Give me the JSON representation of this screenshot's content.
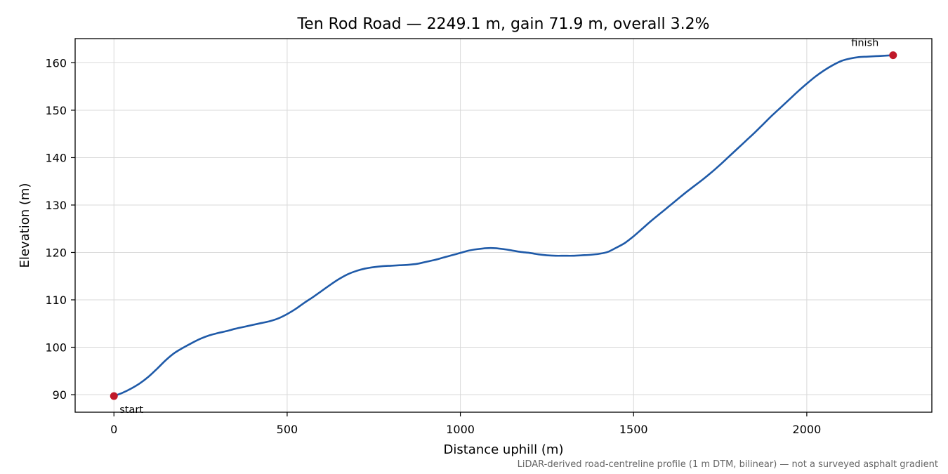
{
  "chart_data": {
    "type": "line",
    "title": "Ten Rod Road — 2249.1 m, gain 71.9 m, overall 3.2%",
    "xlabel": "Distance uphill (m)",
    "ylabel": "Elevation (m)",
    "footnote": "LiDAR-derived road-centreline profile (1 m DTM, bilinear) — not a surveyed asphalt gradient",
    "xlim": [
      -112,
      2361
    ],
    "ylim": [
      86.3,
      165.1
    ],
    "xticks": [
      0,
      500,
      1000,
      1500,
      2000
    ],
    "xtick_labels": [
      "0",
      "500",
      "1000",
      "1500",
      "2000"
    ],
    "yticks": [
      90,
      100,
      110,
      120,
      130,
      140,
      150,
      160
    ],
    "ytick_labels": [
      "90",
      "100",
      "110",
      "120",
      "130",
      "140",
      "150",
      "160"
    ],
    "grid": true,
    "series": [
      {
        "color": "#1f5aa8",
        "x": [
          0,
          25,
          50,
          75,
          100,
          125,
          150,
          175,
          200,
          225,
          250,
          275,
          300,
          325,
          350,
          375,
          400,
          425,
          450,
          475,
          500,
          525,
          550,
          575,
          600,
          625,
          650,
          675,
          700,
          725,
          750,
          775,
          800,
          825,
          850,
          875,
          900,
          925,
          950,
          975,
          1000,
          1025,
          1050,
          1075,
          1100,
          1125,
          1150,
          1175,
          1200,
          1225,
          1250,
          1275,
          1300,
          1325,
          1350,
          1375,
          1400,
          1425,
          1450,
          1475,
          1500,
          1525,
          1550,
          1575,
          1600,
          1625,
          1650,
          1675,
          1700,
          1725,
          1750,
          1775,
          1800,
          1825,
          1850,
          1875,
          1900,
          1925,
          1950,
          1975,
          2000,
          2025,
          2050,
          2075,
          2100,
          2125,
          2150,
          2175,
          2200,
          2225,
          2249.1
        ],
        "y": [
          89.7,
          90.4,
          91.3,
          92.4,
          93.8,
          95.5,
          97.3,
          98.8,
          99.9,
          100.9,
          101.8,
          102.5,
          103.0,
          103.4,
          103.9,
          104.3,
          104.7,
          105.1,
          105.5,
          106.1,
          107.0,
          108.1,
          109.4,
          110.6,
          111.9,
          113.2,
          114.4,
          115.4,
          116.1,
          116.6,
          116.9,
          117.1,
          117.2,
          117.3,
          117.4,
          117.6,
          118.0,
          118.4,
          118.9,
          119.4,
          119.9,
          120.4,
          120.7,
          120.9,
          120.9,
          120.7,
          120.4,
          120.1,
          119.9,
          119.6,
          119.4,
          119.3,
          119.3,
          119.3,
          119.4,
          119.5,
          119.7,
          120.1,
          121.0,
          122.0,
          123.4,
          125.0,
          126.6,
          128.1,
          129.6,
          131.1,
          132.6,
          134.0,
          135.4,
          136.9,
          138.5,
          140.2,
          141.9,
          143.6,
          145.3,
          147.1,
          148.9,
          150.6,
          152.3,
          154.0,
          155.6,
          157.1,
          158.4,
          159.5,
          160.4,
          160.9,
          161.2,
          161.3,
          161.4,
          161.5,
          161.6
        ]
      }
    ],
    "markers": [
      {
        "label": "start",
        "x": 0,
        "y": 89.7,
        "color": "#c0192a"
      },
      {
        "label": "finish",
        "x": 2249.1,
        "y": 161.6,
        "color": "#c0192a"
      }
    ]
  }
}
